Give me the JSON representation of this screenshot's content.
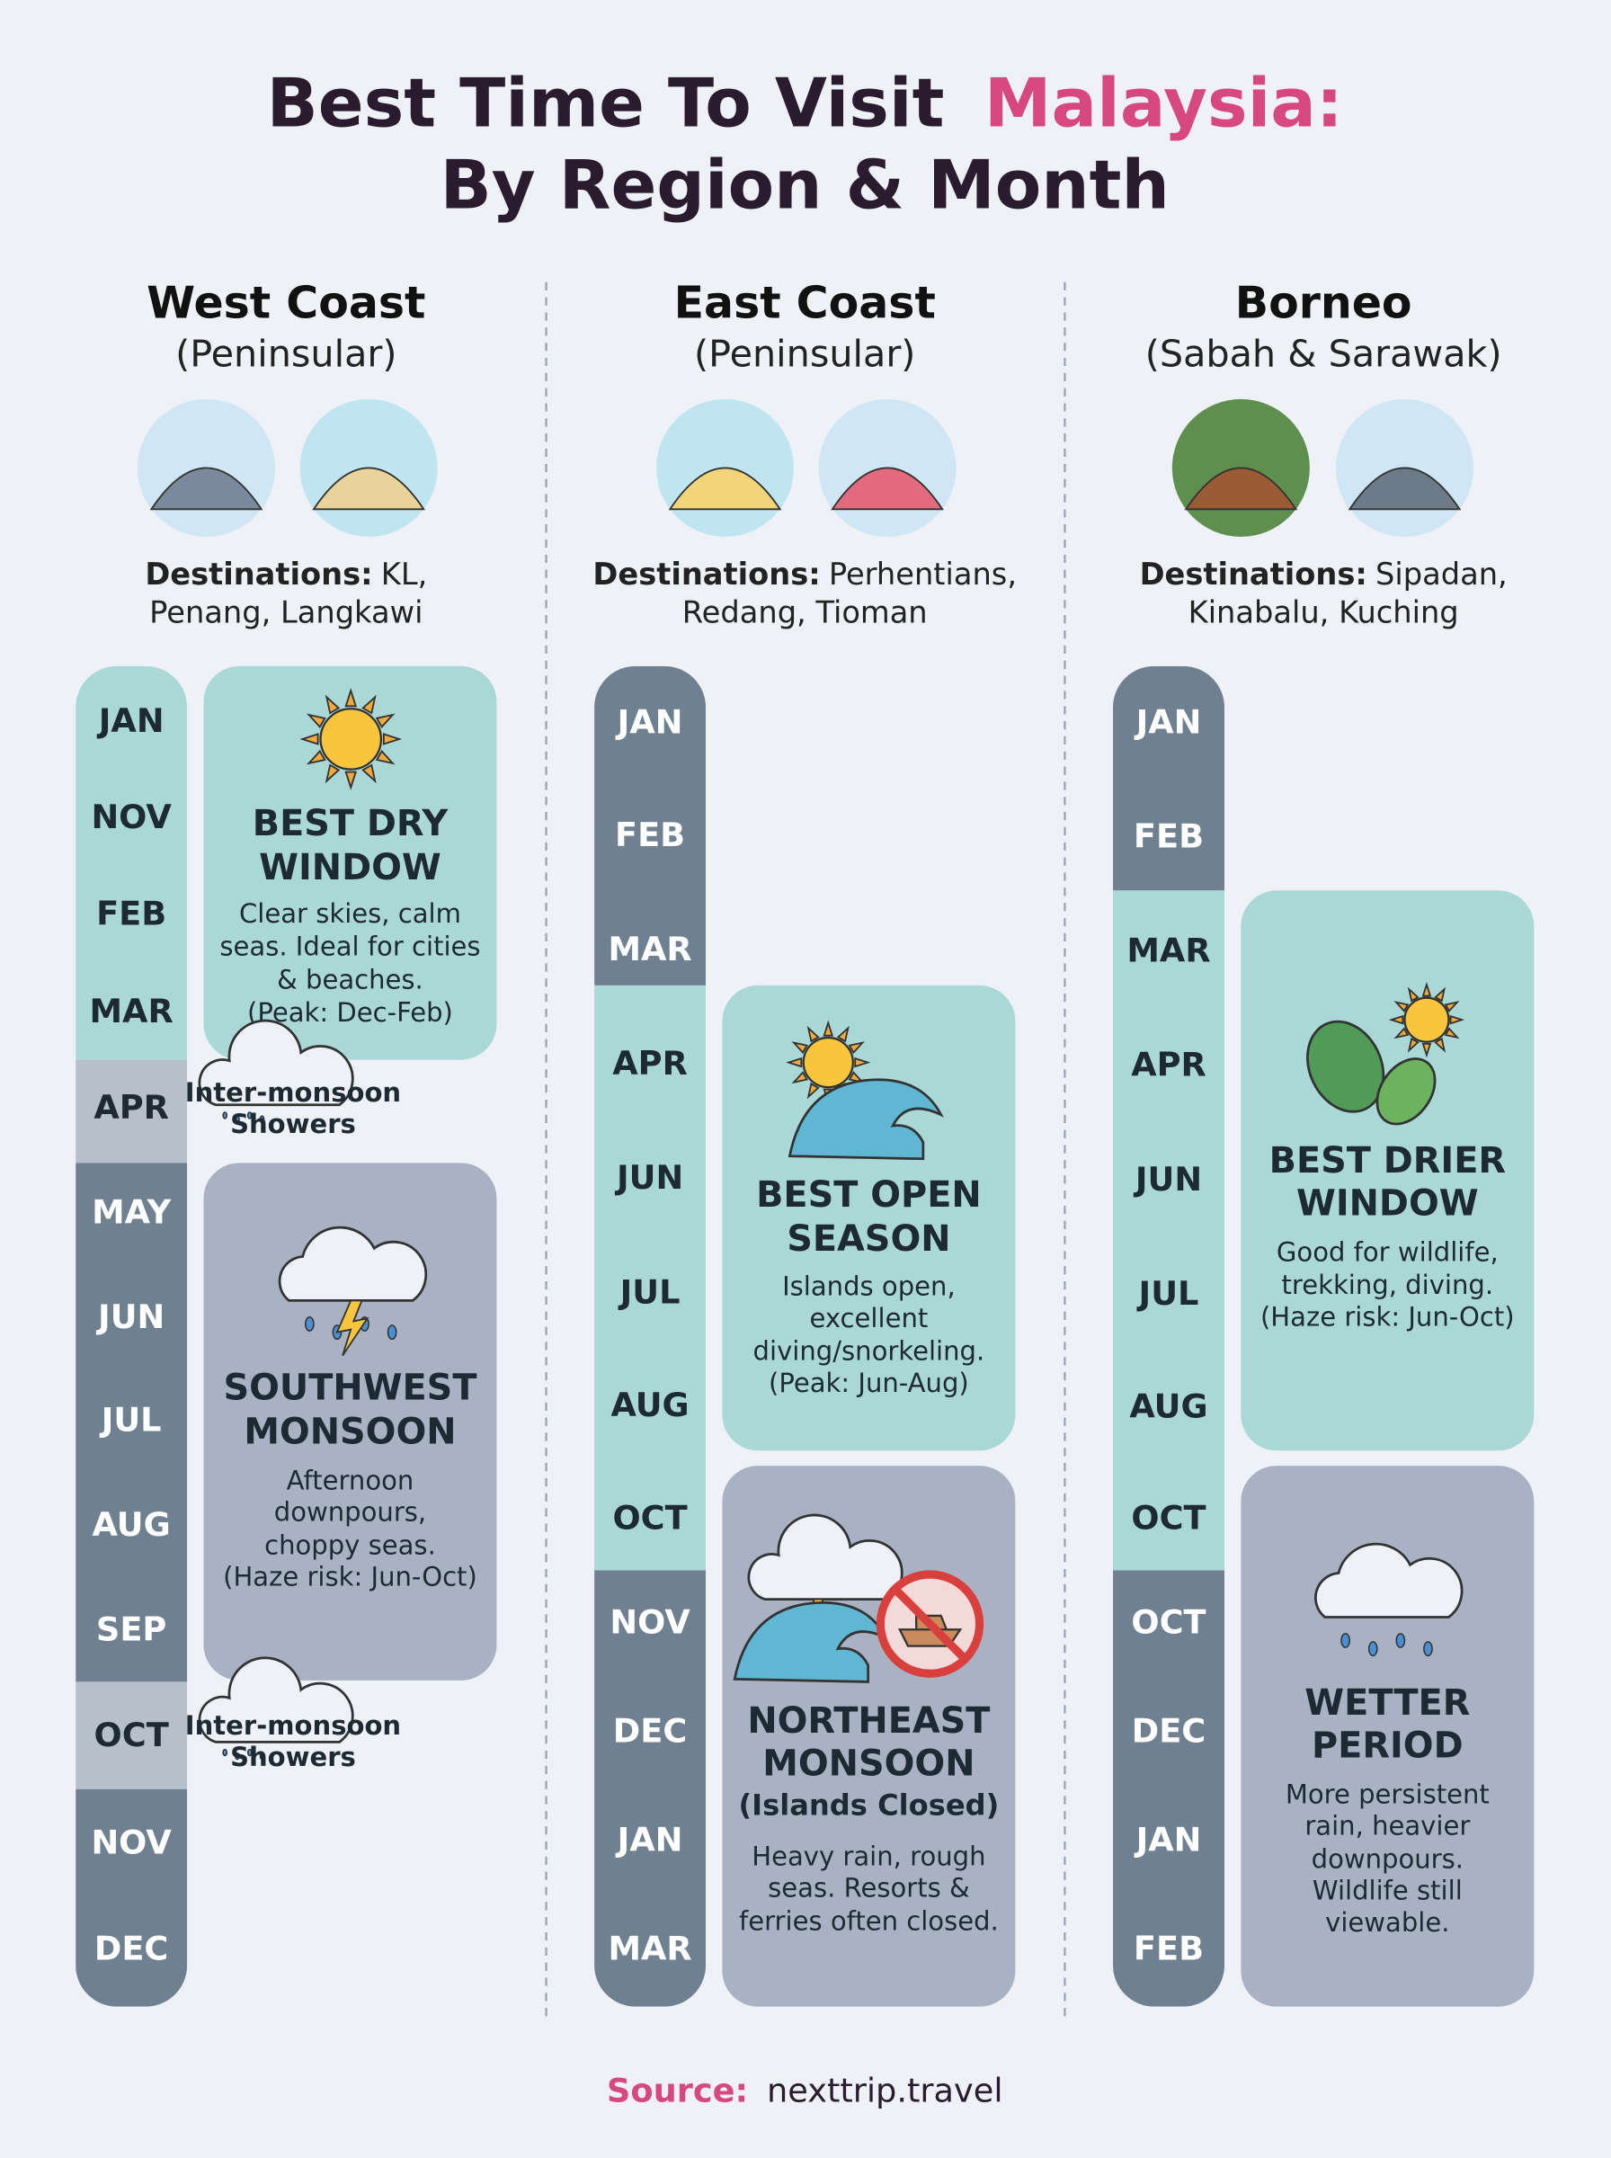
{
  "title": {
    "lead": "Best Time To Visit",
    "highlight": "Malaysia:",
    "line2": "By Region & Month"
  },
  "regions": [
    {
      "name": "West Coast",
      "subtitle": "(Peninsular)",
      "destinations_label": "Destinations:",
      "destinations": [
        "KL,",
        "Penang, Langkawi"
      ],
      "months": [
        "JAN",
        "NOV",
        "FEB",
        "MAR",
        "APR",
        "MAY",
        "JUN",
        "JUL",
        "AUG",
        "SEP",
        "OCT",
        "NOV",
        "DEC"
      ],
      "periods": [
        {
          "title": [
            "BEST DRY",
            "WINDOW"
          ],
          "description": [
            "Clear skies, calm",
            "seas. Ideal for cities",
            "& beaches.",
            "(Peak: Dec-Feb)"
          ]
        },
        {
          "title": [
            "SOUTHWEST",
            "MONSOON"
          ],
          "description": [
            "Afternoon",
            "downpours,",
            "choppy seas.",
            "(Haze risk: Jun-Oct)"
          ]
        }
      ],
      "notes": [
        [
          "Inter-monsoon",
          "Showers"
        ],
        [
          "Inter-monsoon",
          "Showers"
        ]
      ]
    },
    {
      "name": "East Coast",
      "subtitle": "(Peninsular)",
      "destinations_label": "Destinations:",
      "destinations": [
        "Perhentians,",
        "Redang, Tioman"
      ],
      "months": [
        "JAN",
        "FEB",
        "MAR",
        "APR",
        "JUN",
        "JUL",
        "AUG",
        "OCT",
        "NOV",
        "DEC",
        "JAN",
        "MAR"
      ],
      "periods": [
        {
          "title": [
            "BEST OPEN",
            "SEASON"
          ],
          "description": [
            "Islands open,",
            "excellent",
            "diving/snorkeling.",
            "(Peak: Jun-Aug)"
          ]
        },
        {
          "title": [
            "NORTHEAST",
            "MONSOON"
          ],
          "note": "(Islands Closed)",
          "description": [
            "Heavy rain, rough",
            "seas. Resorts &",
            "ferries often closed."
          ]
        }
      ]
    },
    {
      "name": "Borneo",
      "subtitle": "(Sabah & Sarawak)",
      "destinations_label": "Destinations:",
      "destinations": [
        "Sipadan,",
        "Kinabalu, Kuching"
      ],
      "months": [
        "JAN",
        "FEB",
        "MAR",
        "APR",
        "JUN",
        "JUL",
        "AUG",
        "OCT",
        "OCT",
        "DEC",
        "JAN",
        "FEB"
      ],
      "periods": [
        {
          "title": [
            "BEST DRIER",
            "WINDOW"
          ],
          "description": [
            "Good for wildlife,",
            "trekking, diving.",
            "(Haze risk: Jun-Oct)"
          ]
        },
        {
          "title": [
            "WETTER",
            "PERIOD"
          ],
          "description": [
            "More persistent",
            "rain, heavier",
            "downpours.",
            "Wildlife still",
            "viewable."
          ]
        }
      ]
    }
  ],
  "source": {
    "label": "Source:",
    "text": "nexttrip.travel"
  }
}
